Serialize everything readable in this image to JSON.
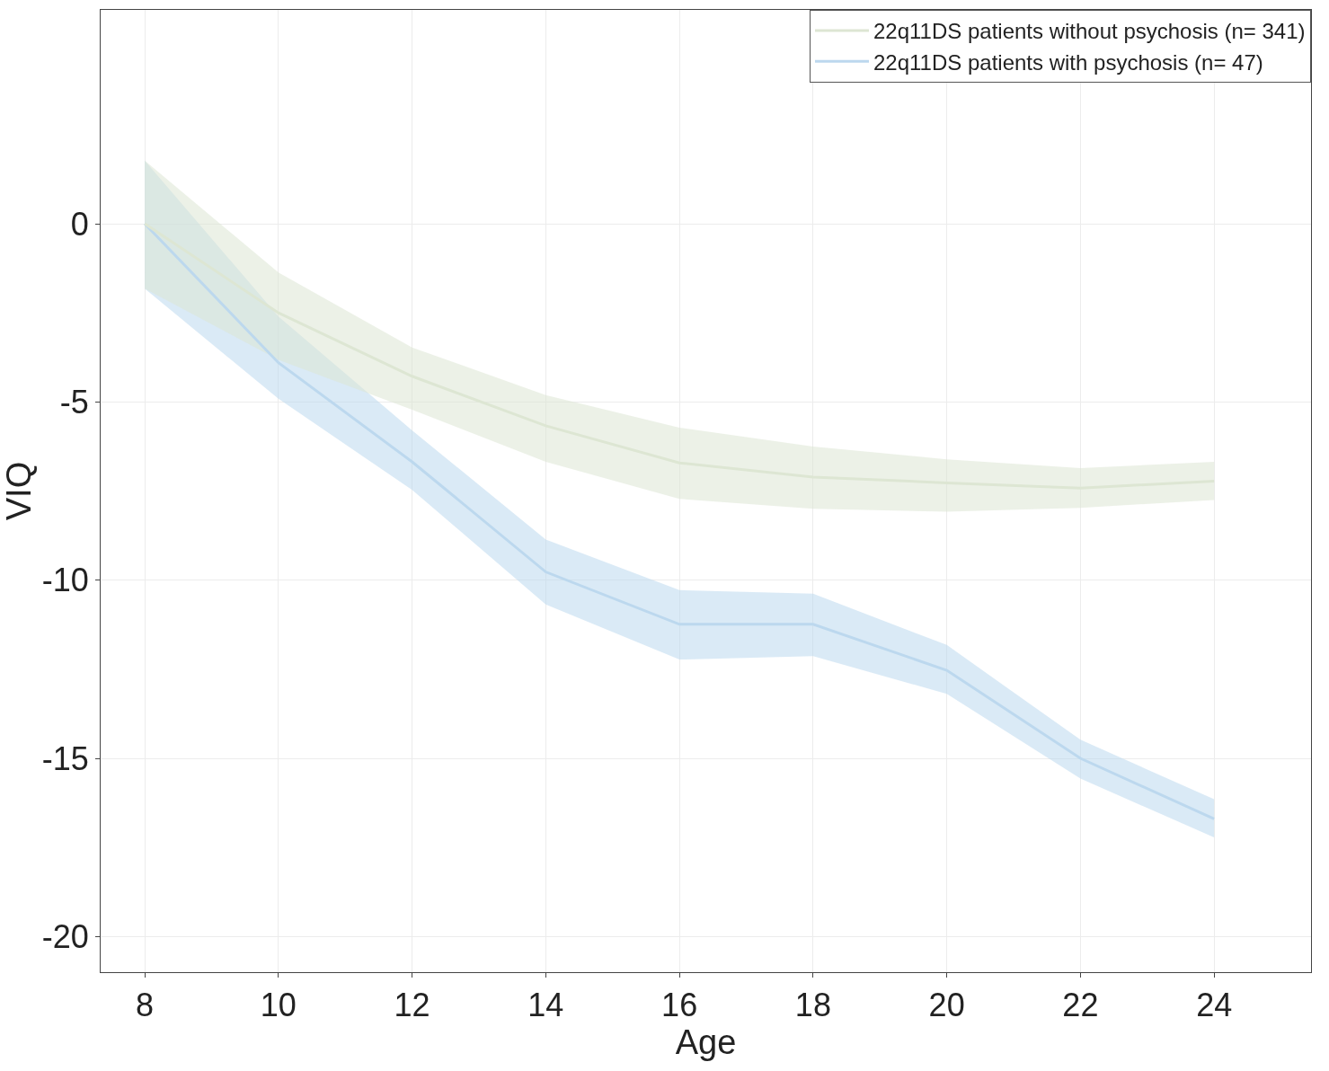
{
  "chart_data": {
    "type": "line",
    "xlabel": "Age",
    "ylabel": "VIQ",
    "x": [
      8,
      10,
      12,
      14,
      16,
      18,
      20,
      22,
      24
    ],
    "series": [
      {
        "name": "22q11DS patients without psychosis (n= 341)",
        "color": "#dde6d3",
        "values": [
          0,
          -2.5,
          -4.28,
          -5.67,
          -6.71,
          -7.11,
          -7.27,
          -7.42,
          -7.22
        ],
        "upper": [
          1.77,
          -1.37,
          -3.47,
          -4.81,
          -5.72,
          -6.25,
          -6.61,
          -6.86,
          -6.68
        ],
        "lower": [
          -1.82,
          -3.82,
          -5.22,
          -6.68,
          -7.72,
          -8.0,
          -8.08,
          -7.97,
          -7.75
        ]
      },
      {
        "name": "22q11DS patients with psychosis (n= 47)",
        "color": "#bcd8ee",
        "values": [
          0,
          -3.9,
          -6.68,
          -9.77,
          -11.24,
          -11.24,
          -12.53,
          -15.0,
          -16.7
        ],
        "upper": [
          1.77,
          -2.6,
          -5.8,
          -8.86,
          -10.28,
          -10.38,
          -11.82,
          -14.48,
          -16.15
        ],
        "lower": [
          -1.82,
          -4.91,
          -7.47,
          -10.68,
          -12.23,
          -12.13,
          -13.19,
          -15.57,
          -17.22
        ]
      }
    ],
    "xlim": [
      7.34,
      25.45
    ],
    "xticks": [
      8,
      10,
      12,
      14,
      16,
      18,
      20,
      22,
      24
    ],
    "ylim": [
      -21.0,
      6.0
    ],
    "yticks": [
      0,
      -5,
      -10,
      -15,
      -20
    ],
    "grid": true,
    "legend": "top right",
    "marker": "none",
    "line_style": "solid"
  }
}
